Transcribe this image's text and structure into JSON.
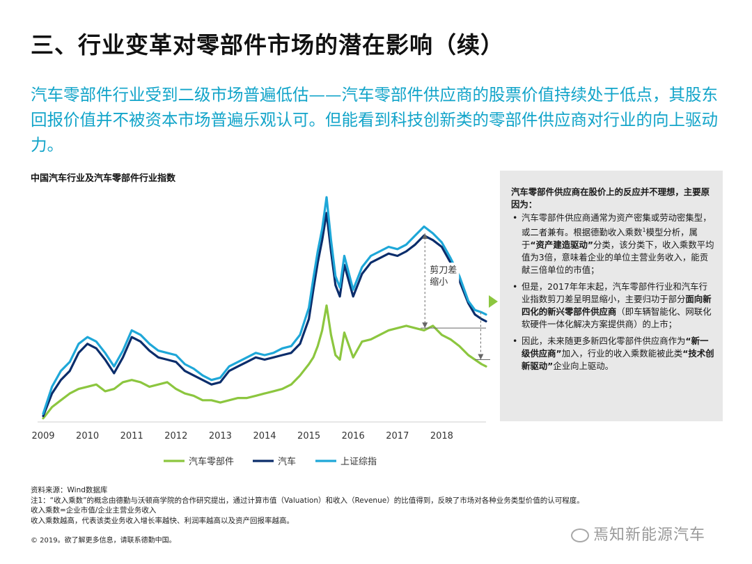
{
  "page": {
    "title": "三、行业变革对零部件市场的潜在影响（续）",
    "subtitle": "汽车零部件行业受到二级市场普遍低估——汽车零部件供应商的股票价值持续处于低点，其股东回报价值并不被资本市场普遍乐观认可。但能看到科技创新类的零部件供应商对行业的向上驱动力。"
  },
  "chart_data": {
    "type": "line",
    "title": "中国汽车行业及汽车零部件行业指数",
    "x_ticks": [
      "2009",
      "2010",
      "2011",
      "2012",
      "2013",
      "2014",
      "2015",
      "2016",
      "2017",
      "2018"
    ],
    "x_range": [
      2009,
      2019
    ],
    "y_range": [
      0,
      100
    ],
    "annotation": "剪刀差\n缩小",
    "colors": {
      "auto_parts": "#8cc63f",
      "auto": "#0b2d6b",
      "shanghai": "#1ea7d8"
    },
    "legend": [
      "汽车零部件",
      "汽车",
      "上证综指"
    ],
    "series": [
      {
        "name": "汽车零部件",
        "color": "#8cc63f",
        "x": [
          2009.0,
          2009.2,
          2009.4,
          2009.6,
          2009.8,
          2010.0,
          2010.2,
          2010.4,
          2010.6,
          2010.8,
          2011.0,
          2011.2,
          2011.4,
          2011.6,
          2011.8,
          2012.0,
          2012.2,
          2012.4,
          2012.6,
          2012.8,
          2013.0,
          2013.2,
          2013.4,
          2013.6,
          2013.8,
          2014.0,
          2014.2,
          2014.4,
          2014.6,
          2014.8,
          2015.0,
          2015.1,
          2015.2,
          2015.3,
          2015.4,
          2015.5,
          2015.6,
          2015.7,
          2015.8,
          2016.0,
          2016.2,
          2016.4,
          2016.6,
          2016.8,
          2017.0,
          2017.2,
          2017.4,
          2017.6,
          2017.8,
          2018.0,
          2018.2,
          2018.4,
          2018.6,
          2018.75,
          2018.9,
          2019.0
        ],
        "values": [
          1,
          6,
          9,
          12,
          14,
          15,
          16,
          13,
          14,
          17,
          18,
          17,
          15,
          16,
          17,
          14,
          12,
          11,
          9,
          9,
          8,
          9,
          10,
          10,
          11,
          12,
          13,
          14,
          16,
          20,
          25,
          28,
          33,
          40,
          51,
          38,
          29,
          27,
          39,
          28,
          35,
          36,
          38,
          40,
          41,
          42,
          41,
          40,
          42,
          38,
          36,
          33,
          29,
          27,
          25,
          24
        ]
      },
      {
        "name": "汽车",
        "color": "#0b2d6b",
        "x": [
          2009.0,
          2009.2,
          2009.4,
          2009.6,
          2009.8,
          2010.0,
          2010.2,
          2010.4,
          2010.6,
          2010.8,
          2011.0,
          2011.2,
          2011.4,
          2011.6,
          2011.8,
          2012.0,
          2012.2,
          2012.4,
          2012.6,
          2012.8,
          2013.0,
          2013.2,
          2013.4,
          2013.6,
          2013.8,
          2014.0,
          2014.2,
          2014.4,
          2014.6,
          2014.8,
          2015.0,
          2015.1,
          2015.2,
          2015.3,
          2015.4,
          2015.5,
          2015.6,
          2015.7,
          2015.8,
          2016.0,
          2016.2,
          2016.4,
          2016.6,
          2016.8,
          2017.0,
          2017.2,
          2017.4,
          2017.6,
          2017.8,
          2018.0,
          2018.2,
          2018.4,
          2018.6,
          2018.75,
          2018.9,
          2019.0
        ],
        "values": [
          2,
          12,
          18,
          22,
          30,
          34,
          32,
          27,
          21,
          28,
          37,
          35,
          31,
          28,
          27,
          26,
          22,
          20,
          18,
          16,
          17,
          22,
          24,
          26,
          28,
          27,
          28,
          29,
          30,
          34,
          45,
          58,
          70,
          80,
          92,
          75,
          60,
          55,
          69,
          55,
          65,
          70,
          72,
          74,
          73,
          75,
          78,
          82,
          80,
          77,
          70,
          62,
          52,
          47,
          45,
          44
        ]
      },
      {
        "name": "上证综指",
        "color": "#1ea7d8",
        "x": [
          2009.0,
          2009.2,
          2009.4,
          2009.6,
          2009.8,
          2010.0,
          2010.2,
          2010.4,
          2010.6,
          2010.8,
          2011.0,
          2011.2,
          2011.4,
          2011.6,
          2011.8,
          2012.0,
          2012.2,
          2012.4,
          2012.6,
          2012.8,
          2013.0,
          2013.2,
          2013.4,
          2013.6,
          2013.8,
          2014.0,
          2014.2,
          2014.4,
          2014.6,
          2014.8,
          2015.0,
          2015.1,
          2015.2,
          2015.3,
          2015.4,
          2015.5,
          2015.6,
          2015.7,
          2015.8,
          2016.0,
          2016.2,
          2016.4,
          2016.6,
          2016.8,
          2017.0,
          2017.2,
          2017.4,
          2017.6,
          2017.8,
          2018.0,
          2018.2,
          2018.4,
          2018.6,
          2018.75,
          2018.9,
          2019.0
        ],
        "values": [
          3,
          15,
          22,
          26,
          34,
          37,
          35,
          30,
          24,
          31,
          40,
          38,
          34,
          31,
          30,
          29,
          25,
          23,
          20,
          18,
          19,
          24,
          26,
          28,
          30,
          29,
          30,
          32,
          33,
          38,
          50,
          63,
          75,
          85,
          99,
          80,
          64,
          59,
          73,
          58,
          68,
          73,
          75,
          77,
          76,
          78,
          82,
          86,
          83,
          79,
          72,
          64,
          53,
          49,
          48,
          47
        ]
      }
    ]
  },
  "sidebar": {
    "heading": "汽车零部件供应商在股价上的反应并不理想，主要原因为：",
    "bullet": "•",
    "items": [
      {
        "pre": "汽车零部件供应商通常为资产密集或劳动密集型，或二者兼有。根据德勤收入乘数",
        "sup": "1",
        "mid": "模型分析，属于",
        "bold": "“资产建造驱动”",
        "post": "分类，该分类下，收入乘数平均值为3倍，意味着企业的单位主营业务收入，能贡献三倍单位的市值；"
      },
      {
        "pre": "但是，2017年年末起，汽车零部件行业和汽车行业指数剪刀差呈明显缩小，主要归功于部分",
        "bold": "面向新四化的新兴零部件供应商",
        "post": "（即车辆智能化、网联化软硬件一体化解决方案提供商）的上市；"
      },
      {
        "pre": "因此，未来随更多新四化零部件供应商作为",
        "bold": "“新一级供应商”",
        "mid": "加入，行业的收入乘数能被此类",
        "bold2": "“技术创新驱动”",
        "post": "企业向上驱动。"
      }
    ]
  },
  "notes": [
    "资料来源：Wind数据库",
    "注1：“收入乘数”的概念由德勤与沃顿商学院的合作研究提出，通过计算市值（Valuation）和收入（Revenue）的比值得到，反映了市场对各种业务类型价值的认可程度。",
    "收入乘数=企业市值/企业主营业务收入",
    "收入乘数越高，代表该类业务收入增长率越快、利润率越高以及资产回报率越高。"
  ],
  "copyright": "© 2019。欲了解更多信息，请联系德勤中国。",
  "watermark": "焉知新能源汽车"
}
